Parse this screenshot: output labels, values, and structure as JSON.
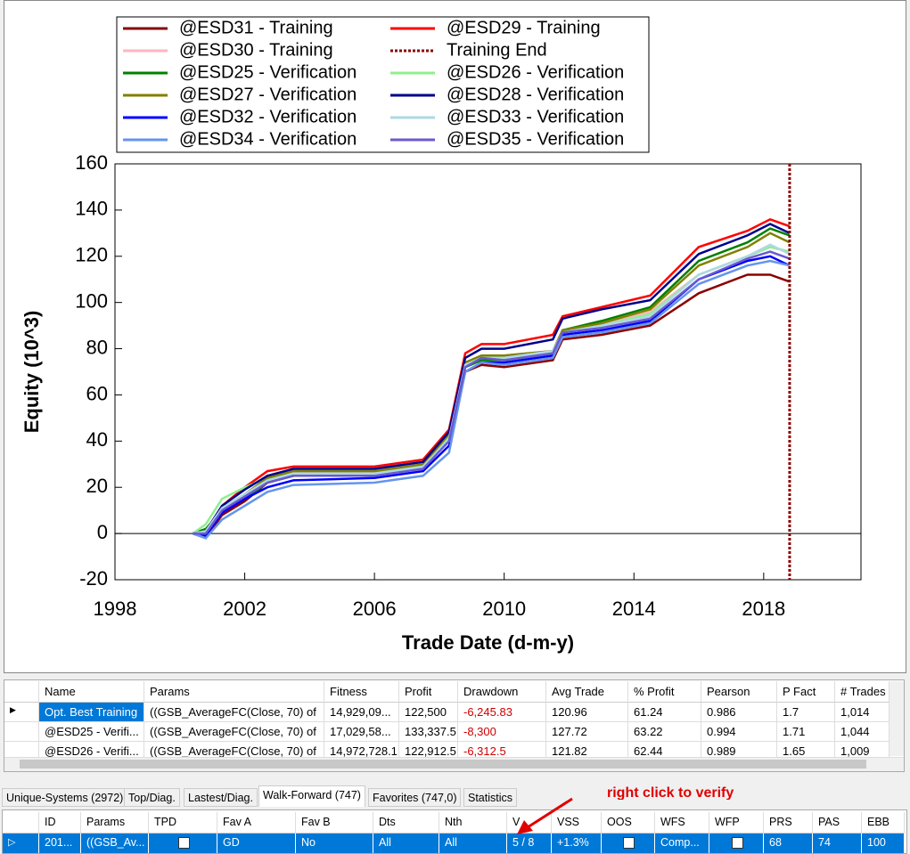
{
  "chart_data": {
    "type": "line",
    "xlabel": "Trade Date (d-m-y)",
    "ylabel": "Equity (10^3)",
    "x": [
      2000.4,
      2000.8,
      2001.3,
      2002,
      2002.7,
      2003.5,
      2006,
      2007.5,
      2008.3,
      2008.8,
      2009.3,
      2010,
      2011.5,
      2011.8,
      2013,
      2014.5,
      2016,
      2017.5,
      2018.2,
      2018.8
    ],
    "xlim": [
      1998,
      2021
    ],
    "xticks": [
      1998,
      2002,
      2006,
      2010,
      2014,
      2018
    ],
    "ylim": [
      -20,
      160
    ],
    "yticks": [
      -20,
      0,
      20,
      40,
      60,
      80,
      100,
      120,
      140,
      160
    ],
    "series": [
      {
        "name": "@ESD31 - Training",
        "color": "#8b0000",
        "values": [
          0,
          -2,
          8,
          14,
          22,
          25,
          26,
          29,
          40,
          70,
          73,
          72,
          75,
          84,
          86,
          90,
          104,
          112,
          112,
          109
        ]
      },
      {
        "name": "@ESD29 - Training",
        "color": "#ff0000",
        "values": [
          0,
          -1,
          12,
          20,
          27,
          29,
          29,
          32,
          45,
          78,
          82,
          82,
          86,
          94,
          98,
          103,
          124,
          131,
          136,
          133
        ]
      },
      {
        "name": "@ESD30 - Training",
        "color": "#ffb6c1",
        "values": [
          0,
          0,
          10,
          17,
          24,
          27,
          27,
          30,
          42,
          74,
          77,
          77,
          79,
          88,
          90,
          96,
          112,
          120,
          124,
          122
        ]
      },
      {
        "name": "@ESD25 - Verification",
        "color": "#008000",
        "values": [
          0,
          2,
          10,
          15,
          22,
          25,
          26,
          29,
          42,
          72,
          75,
          75,
          78,
          88,
          92,
          98,
          118,
          126,
          132,
          129
        ]
      },
      {
        "name": "@ESD26 - Verification",
        "color": "#90ee90",
        "values": [
          0,
          4,
          15,
          20,
          24,
          26,
          26,
          29,
          42,
          74,
          77,
          76,
          79,
          88,
          90,
          95,
          112,
          120,
          124,
          122
        ]
      },
      {
        "name": "@ESD27 - Verification",
        "color": "#808000",
        "values": [
          0,
          1,
          11,
          17,
          24,
          27,
          27,
          30,
          43,
          74,
          77,
          77,
          79,
          88,
          91,
          97,
          116,
          124,
          130,
          126
        ]
      },
      {
        "name": "@ESD28 - Verification",
        "color": "#00008b",
        "values": [
          0,
          1,
          12,
          19,
          25,
          28,
          28,
          31,
          44,
          76,
          80,
          80,
          84,
          93,
          97,
          101,
          121,
          129,
          134,
          130
        ]
      },
      {
        "name": "@ESD32 - Verification",
        "color": "#0000ff",
        "values": [
          0,
          -1,
          9,
          15,
          20,
          23,
          24,
          27,
          38,
          70,
          74,
          74,
          77,
          86,
          88,
          92,
          110,
          118,
          120,
          116
        ]
      },
      {
        "name": "@ESD33 - Verification",
        "color": "#add8e6",
        "values": [
          0,
          1,
          11,
          17,
          23,
          26,
          26,
          29,
          41,
          73,
          76,
          76,
          79,
          87,
          90,
          94,
          112,
          120,
          125,
          121
        ]
      },
      {
        "name": "@ESD34 - Verification",
        "color": "#6495ed",
        "values": [
          0,
          -2,
          6,
          12,
          18,
          21,
          22,
          25,
          35,
          70,
          74,
          73,
          76,
          85,
          87,
          91,
          108,
          116,
          118,
          116
        ]
      },
      {
        "name": "@ESD35 - Verification",
        "color": "#6a5acd",
        "values": [
          0,
          0,
          10,
          16,
          22,
          25,
          25,
          28,
          40,
          72,
          76,
          75,
          78,
          87,
          89,
          93,
          110,
          119,
          122,
          119
        ]
      }
    ],
    "reference_line": {
      "name": "Training End",
      "x": 2018.8,
      "color": "#8b0000"
    }
  },
  "results_table": {
    "columns": [
      "Name",
      "Params",
      "Fitness",
      "Profit",
      "Drawdown",
      "Avg Trade",
      "% Profit",
      "Pearson",
      "P Fact",
      "# Trades"
    ],
    "rows": [
      [
        "Opt. Best Training",
        "((GSB_AverageFC(Close, 70) of",
        "14,929,09...",
        "122,500",
        "-6,245.83",
        "120.96",
        "61.24",
        "0.986",
        "1.7",
        "1,014"
      ],
      [
        "@ESD25 - Verifi...",
        "((GSB_AverageFC(Close, 70) of",
        "17,029,58...",
        "133,337.5",
        "-8,300",
        "127.72",
        "63.22",
        "0.994",
        "1.71",
        "1,044"
      ],
      [
        "@ESD26 - Verifi...",
        "((GSB_AverageFC(Close, 70) of",
        "14,972,728.1",
        "122,912.5",
        "-6,312.5",
        "121.82",
        "62.44",
        "0.989",
        "1.65",
        "1,009"
      ]
    ]
  },
  "tabs": [
    "Unique-Systems (2972)",
    "Top/Diag.",
    "Lastest/Diag.",
    "Walk-Forward (747)",
    "Favorites (747,0)",
    "Statistics"
  ],
  "annotation": "right click to verify",
  "grid": {
    "columns": [
      "ID",
      "Params",
      "TPD",
      "Fav A",
      "Fav B",
      "Dts",
      "Nth",
      "V",
      "VSS",
      "OOS",
      "WFS",
      "WFP",
      "PRS",
      "PAS",
      "EBB"
    ],
    "row": [
      "201...",
      "((GSB_Av...",
      null,
      "GD",
      "No",
      "All",
      "All",
      "5 / 8",
      "+1.3%",
      null,
      "Comp...",
      null,
      "68",
      "74",
      "100"
    ]
  }
}
